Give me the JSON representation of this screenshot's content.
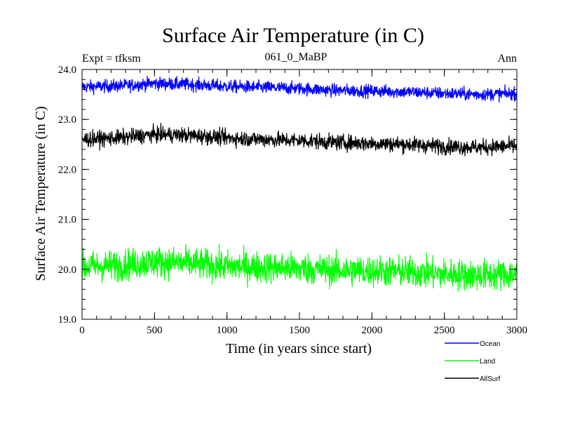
{
  "chart_data": {
    "type": "line",
    "title": "Surface Air Temperature (in C)",
    "subtitle_left": "Expt = tfksm",
    "subtitle_center": "061_0_MaBP",
    "subtitle_right": "Ann",
    "xlabel": "Time (in years since start)",
    "ylabel": "Surface Air Temperature (in C)",
    "xlim": [
      0,
      3000
    ],
    "ylim": [
      19.0,
      24.0
    ],
    "x_ticks": [
      0,
      500,
      1000,
      1500,
      2000,
      2500,
      3000
    ],
    "x_tick_labels": [
      "0",
      "500",
      "1000",
      "1500",
      "2000",
      "2500",
      "3000"
    ],
    "y_ticks": [
      19.0,
      20.0,
      21.0,
      22.0,
      23.0,
      24.0
    ],
    "y_tick_labels": [
      "19.0",
      "20.0",
      "21.0",
      "22.0",
      "23.0",
      "24.0"
    ],
    "x_minor_step": 100,
    "y_minor_step": 0.2,
    "grid": false,
    "legend_position": "bottom-right, below plot",
    "series": [
      {
        "name": "Ocean",
        "color": "#0000ff",
        "x": [
          0,
          250,
          500,
          750,
          1000,
          1250,
          1500,
          1750,
          2000,
          2250,
          2500,
          2750,
          3000
        ],
        "values": [
          23.65,
          23.67,
          23.72,
          23.7,
          23.66,
          23.64,
          23.62,
          23.58,
          23.57,
          23.55,
          23.52,
          23.5,
          23.52
        ],
        "noise_amplitude": 0.09
      },
      {
        "name": "Land",
        "color": "#00ff00",
        "x": [
          0,
          250,
          500,
          750,
          1000,
          1250,
          1500,
          1750,
          2000,
          2250,
          2500,
          2750,
          3000
        ],
        "values": [
          20.05,
          20.08,
          20.15,
          20.12,
          20.06,
          20.04,
          20.02,
          19.98,
          19.97,
          19.95,
          19.9,
          19.88,
          19.9
        ],
        "noise_amplitude": 0.22
      },
      {
        "name": "AllSurf",
        "color": "#000000",
        "x": [
          0,
          250,
          500,
          750,
          1000,
          1250,
          1500,
          1750,
          2000,
          2250,
          2500,
          2750,
          3000
        ],
        "values": [
          22.6,
          22.63,
          22.7,
          22.68,
          22.63,
          22.6,
          22.58,
          22.54,
          22.52,
          22.5,
          22.46,
          22.44,
          22.47
        ],
        "noise_amplitude": 0.11
      }
    ]
  }
}
